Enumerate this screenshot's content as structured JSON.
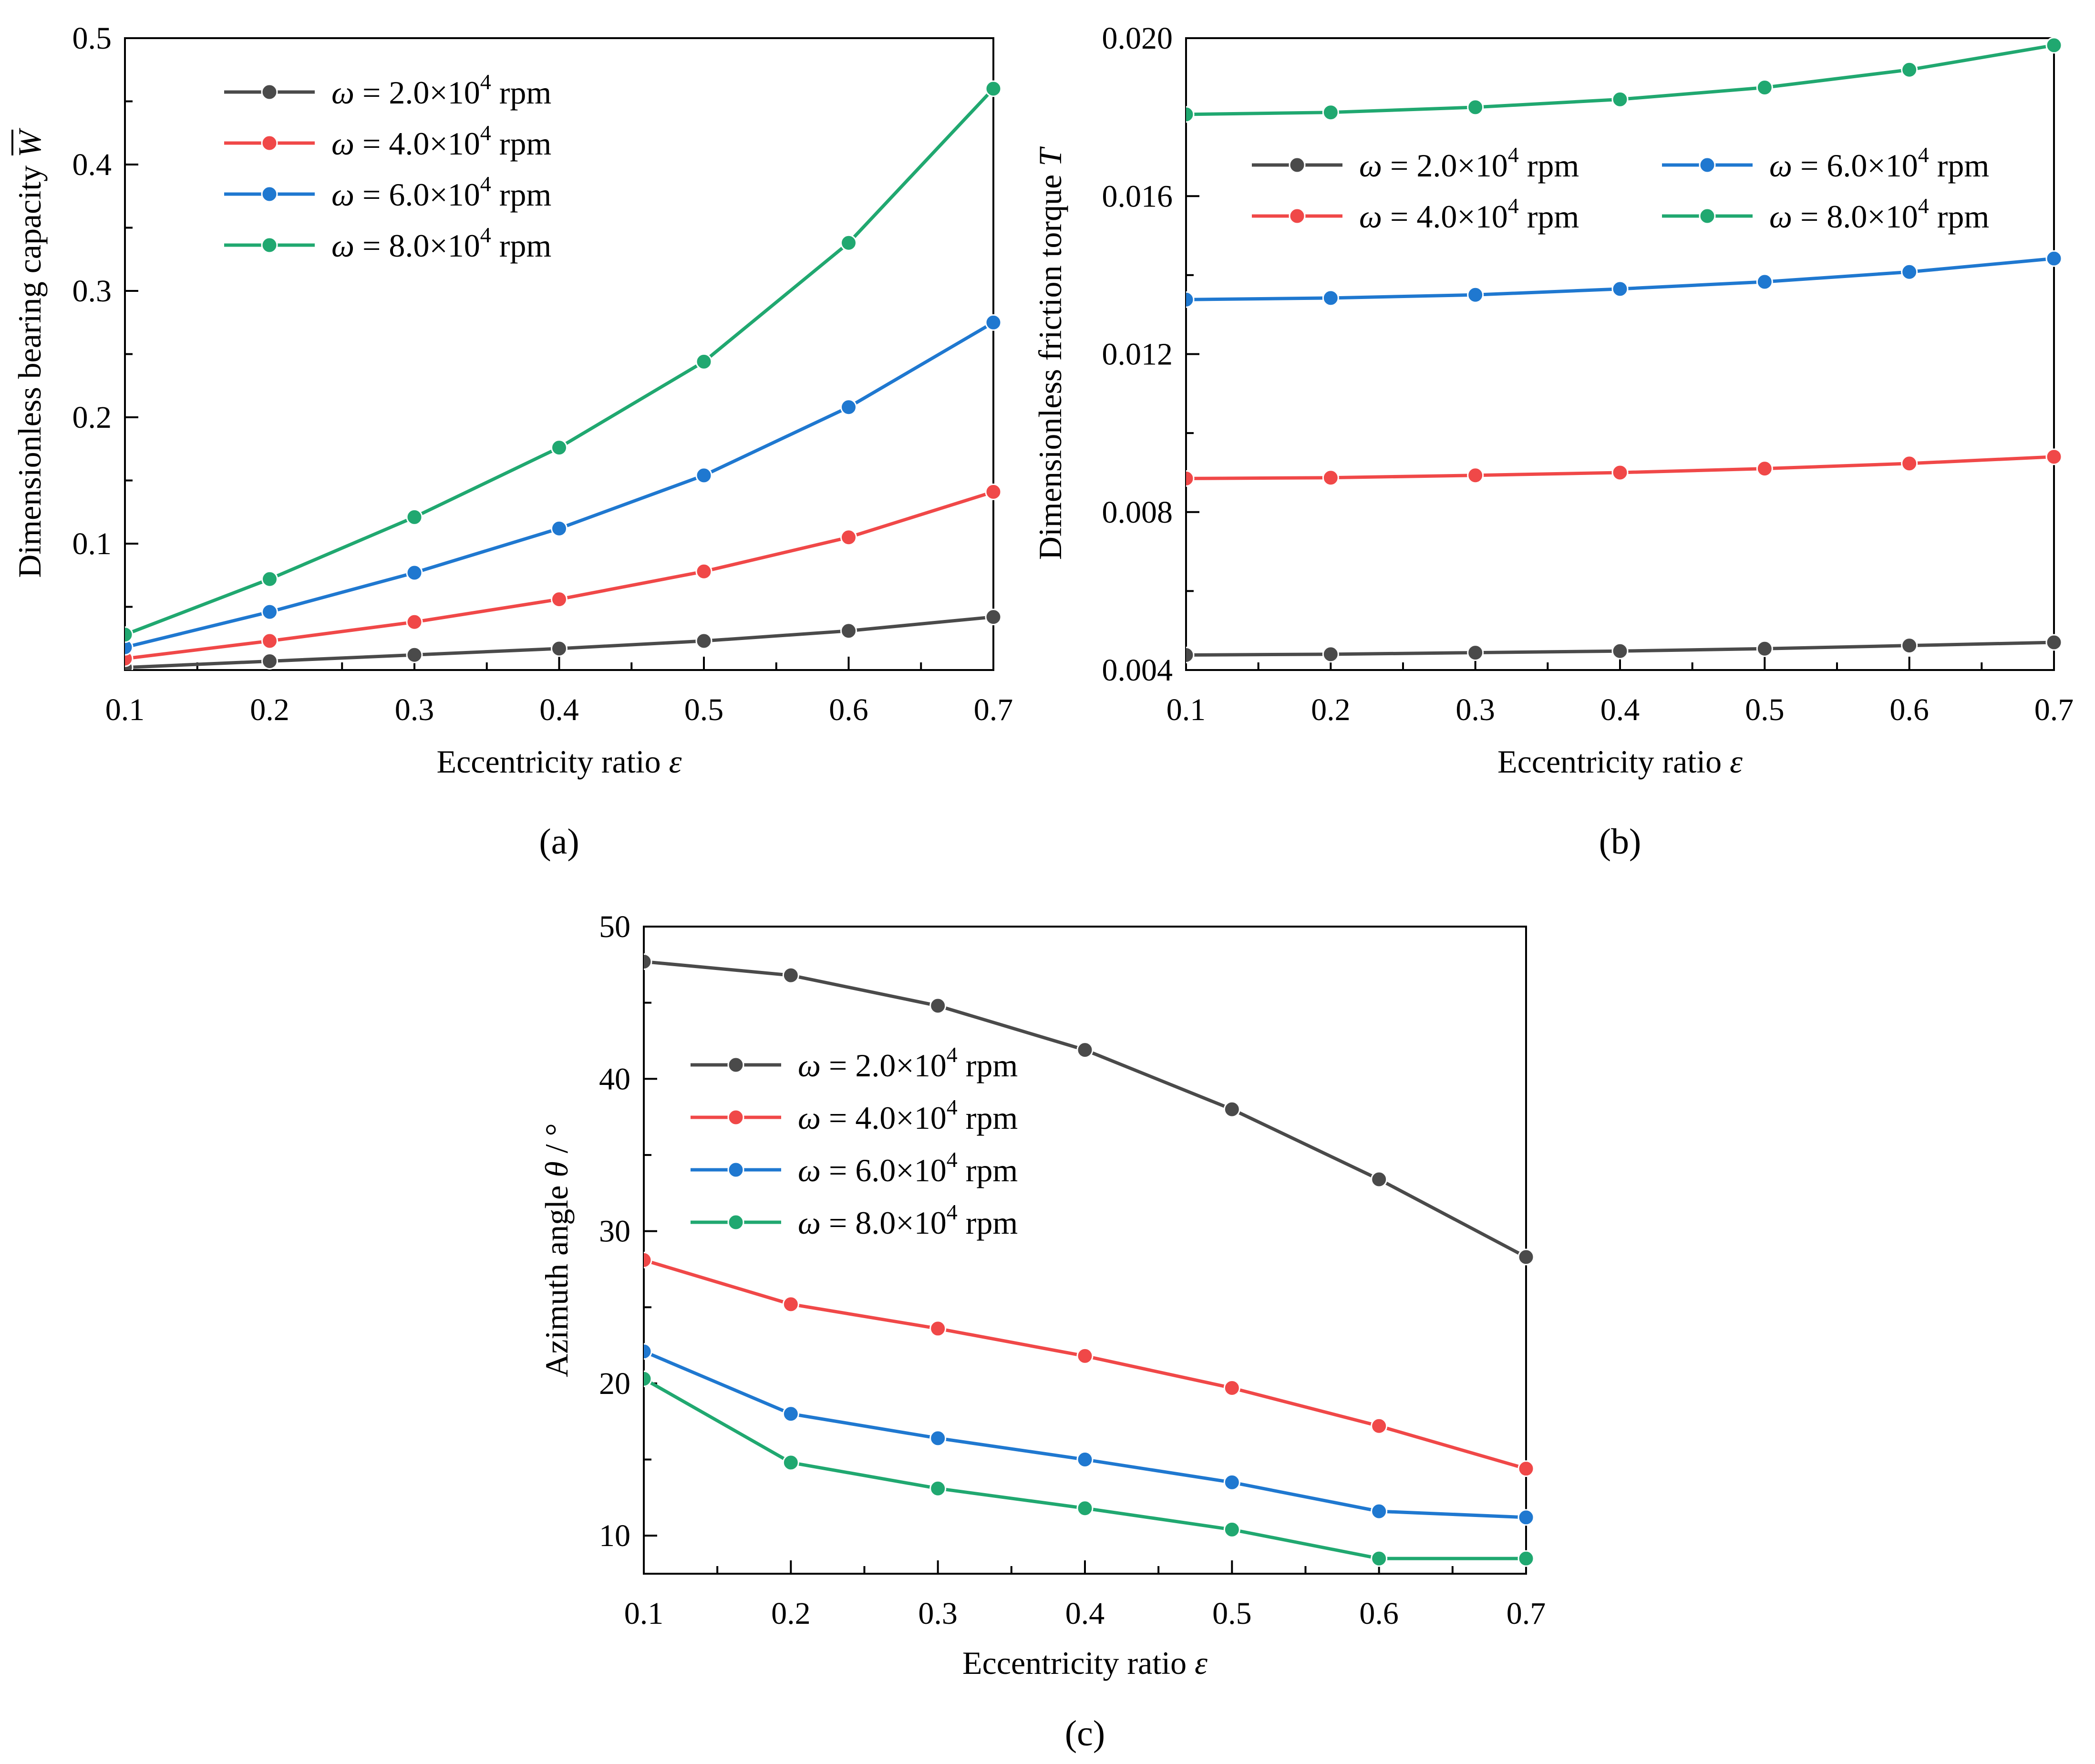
{
  "chart_data": [
    {
      "id": "a",
      "type": "line",
      "caption": "(a)",
      "xlabel": {
        "text": "Eccentricity ratio ",
        "sym": "ε"
      },
      "ylabel": {
        "text": "Dimensionless bearing capacity ",
        "sym": "W"
      },
      "xlim": [
        0.1,
        0.7
      ],
      "ylim": [
        0.0,
        0.5
      ],
      "xticks": [
        "0.1",
        "0.2",
        "0.3",
        "0.4",
        "0.5",
        "0.6",
        "0.7"
      ],
      "yticks": [
        "0.1",
        "0.2",
        "0.3",
        "0.4",
        "0.5"
      ],
      "ytick_values": [
        0.1,
        0.2,
        0.3,
        0.4,
        0.5
      ],
      "x": [
        0.1,
        0.2,
        0.3,
        0.4,
        0.5,
        0.6,
        0.7
      ],
      "legend_columns": 1,
      "legend_position": "top-left",
      "series": [
        {
          "name": "ω = 2.0×10⁴ rpm",
          "color": "#4a4a4a",
          "values": [
            0.002,
            0.007,
            0.012,
            0.017,
            0.023,
            0.031,
            0.042
          ]
        },
        {
          "name": "ω = 4.0×10⁴ rpm",
          "color": "#f04848",
          "values": [
            0.009,
            0.023,
            0.038,
            0.056,
            0.078,
            0.105,
            0.141
          ]
        },
        {
          "name": "ω = 6.0×10⁴ rpm",
          "color": "#1f78d0",
          "values": [
            0.018,
            0.046,
            0.077,
            0.112,
            0.154,
            0.208,
            0.275
          ]
        },
        {
          "name": "ω = 8.0×10⁴ rpm",
          "color": "#20a870",
          "values": [
            0.028,
            0.072,
            0.121,
            0.176,
            0.244,
            0.338,
            0.46
          ]
        }
      ]
    },
    {
      "id": "b",
      "type": "line",
      "caption": "(b)",
      "xlabel": {
        "text": "Eccentricity ratio ",
        "sym": "ε"
      },
      "ylabel": {
        "text": "Dimensionless friction torque ",
        "sym": "T"
      },
      "xlim": [
        0.1,
        0.7
      ],
      "ylim": [
        0.004,
        0.02
      ],
      "xticks": [
        "0.1",
        "0.2",
        "0.3",
        "0.4",
        "0.5",
        "0.6",
        "0.7"
      ],
      "yticks": [
        "0.004",
        "0.008",
        "0.012",
        "0.016",
        "0.020"
      ],
      "ytick_values": [
        0.004,
        0.008,
        0.012,
        0.016,
        0.02
      ],
      "x": [
        0.1,
        0.2,
        0.3,
        0.4,
        0.5,
        0.6,
        0.7
      ],
      "legend_columns": 2,
      "legend_position": "upper-middle",
      "series": [
        {
          "name": "ω = 2.0×10⁴ rpm",
          "color": "#4a4a4a",
          "values": [
            0.00438,
            0.0044,
            0.00444,
            0.00448,
            0.00454,
            0.00462,
            0.0047
          ]
        },
        {
          "name": "ω = 4.0×10⁴ rpm",
          "color": "#f04848",
          "values": [
            0.00885,
            0.00887,
            0.00893,
            0.009,
            0.0091,
            0.00923,
            0.0094
          ]
        },
        {
          "name": "ω = 6.0×10⁴ rpm",
          "color": "#1f78d0",
          "values": [
            0.01338,
            0.01342,
            0.0135,
            0.01365,
            0.01383,
            0.01408,
            0.01442
          ]
        },
        {
          "name": "ω = 8.0×10⁴ rpm",
          "color": "#20a870",
          "values": [
            0.01807,
            0.01812,
            0.01825,
            0.01845,
            0.01875,
            0.0192,
            0.01982
          ]
        }
      ]
    },
    {
      "id": "c",
      "type": "line",
      "caption": "(c)",
      "xlabel": {
        "text": "Eccentricity ratio ",
        "sym": "ε"
      },
      "ylabel": {
        "text": "Azimuth angle ",
        "sym": "θ",
        "unit": " / °"
      },
      "xlim": [
        0.1,
        0.7
      ],
      "ylim": [
        7.5,
        50
      ],
      "xticks": [
        "0.1",
        "0.2",
        "0.3",
        "0.4",
        "0.5",
        "0.6",
        "0.7"
      ],
      "yticks": [
        "10",
        "20",
        "30",
        "40",
        "50"
      ],
      "ytick_values": [
        10,
        20,
        30,
        40,
        50
      ],
      "x": [
        0.1,
        0.2,
        0.3,
        0.4,
        0.5,
        0.6,
        0.7
      ],
      "legend_columns": 1,
      "legend_position": "center-left",
      "series": [
        {
          "name": "ω = 2.0×10⁴ rpm",
          "color": "#4a4a4a",
          "values": [
            47.7,
            46.8,
            44.8,
            41.9,
            38.0,
            33.4,
            28.3
          ]
        },
        {
          "name": "ω = 4.0×10⁴ rpm",
          "color": "#f04848",
          "values": [
            28.1,
            25.2,
            23.6,
            21.8,
            19.7,
            17.2,
            14.4
          ]
        },
        {
          "name": "ω = 6.0×10⁴ rpm",
          "color": "#1f78d0",
          "values": [
            22.1,
            18.0,
            16.4,
            15.0,
            13.5,
            11.6,
            11.2
          ]
        },
        {
          "name": "ω = 8.0×10⁴ rpm",
          "color": "#20a870",
          "values": [
            20.3,
            14.8,
            13.1,
            11.8,
            10.4,
            8.5,
            8.5
          ]
        }
      ]
    }
  ]
}
